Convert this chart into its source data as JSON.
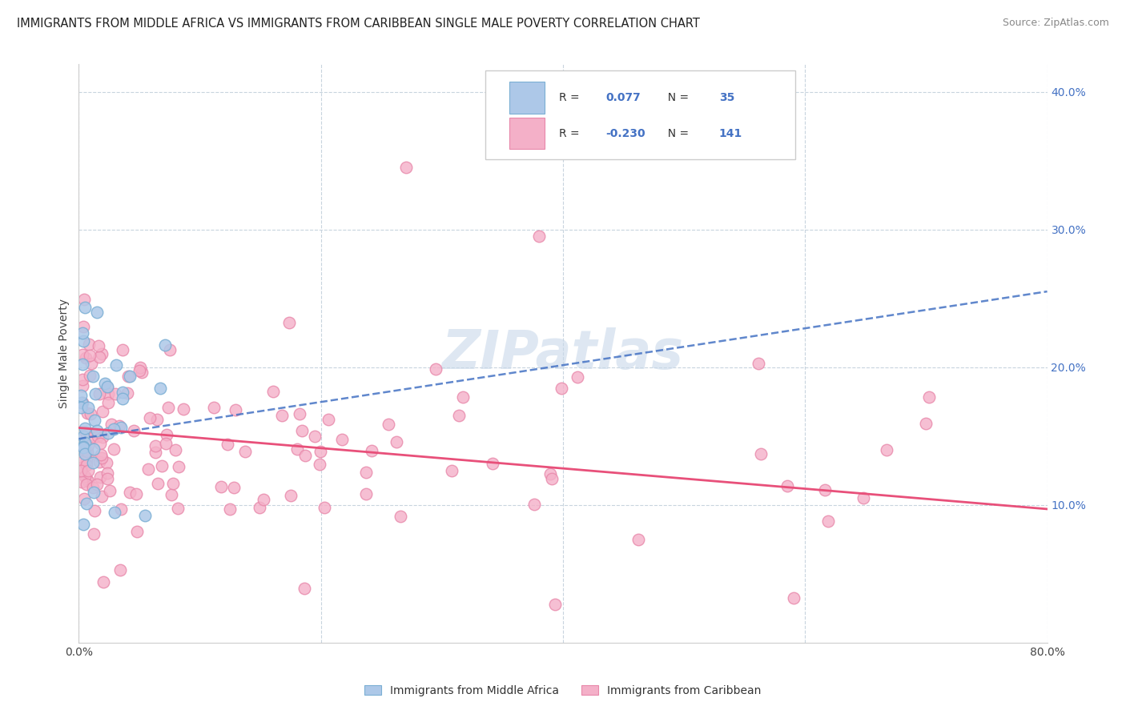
{
  "title": "IMMIGRANTS FROM MIDDLE AFRICA VS IMMIGRANTS FROM CARIBBEAN SINGLE MALE POVERTY CORRELATION CHART",
  "source": "Source: ZipAtlas.com",
  "ylabel": "Single Male Poverty",
  "xlim": [
    0,
    0.8
  ],
  "ylim": [
    0,
    0.42
  ],
  "yticks_right": [
    0.1,
    0.2,
    0.3,
    0.4
  ],
  "ytick_labels_right": [
    "10.0%",
    "20.0%",
    "30.0%",
    "40.0%"
  ],
  "blue_color": "#adc8e8",
  "blue_edge": "#7bafd4",
  "blue_line_color": "#4472c4",
  "pink_color": "#f4b0c8",
  "pink_edge": "#e888aa",
  "pink_line_color": "#e8507a",
  "watermark": "ZIPatlas",
  "watermark_color": "#c8d8ea",
  "grid_color": "#c8d4de",
  "legend_text_color": "#4472c4",
  "blue_line_start_y": 0.148,
  "blue_line_end_y": 0.255,
  "pink_line_start_y": 0.156,
  "pink_line_end_y": 0.097
}
